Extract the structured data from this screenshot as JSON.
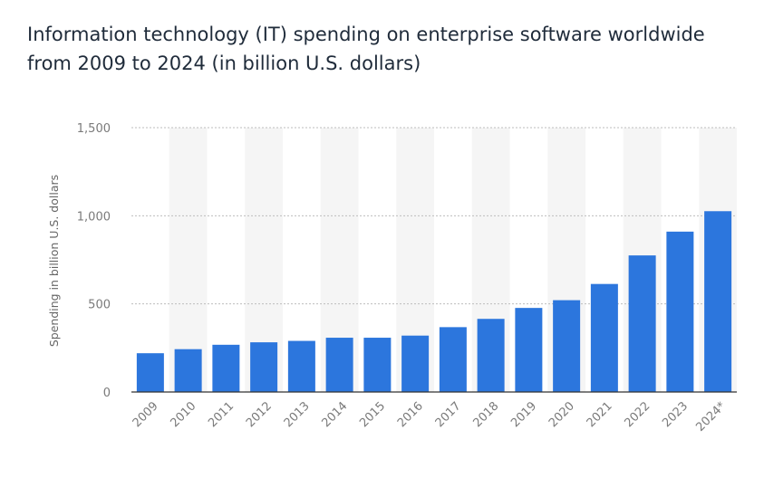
{
  "colors": {
    "bar": "#2c76dd",
    "band": "#f5f5f5",
    "grid": "#bdbdbd",
    "axis": "#333333"
  },
  "chart_data": {
    "type": "bar",
    "title": "Information technology (IT) spending on enterprise software worldwide from 2009 to 2024 (in billion U.S. dollars)",
    "xlabel": "",
    "ylabel": "Spending in billion U.S. dollars",
    "ylim": [
      0,
      1500
    ],
    "yticks": [
      0,
      500,
      1000,
      1500
    ],
    "ytick_labels": [
      "0",
      "500",
      "1,000",
      "1,500"
    ],
    "grid": true,
    "categories": [
      "2009",
      "2010",
      "2011",
      "2012",
      "2013",
      "2014",
      "2015",
      "2016",
      "2017",
      "2018",
      "2019",
      "2020",
      "2021",
      "2022",
      "2023",
      "2024*"
    ],
    "values": [
      220,
      243,
      268,
      282,
      290,
      308,
      308,
      320,
      368,
      415,
      477,
      521,
      613,
      775,
      910,
      1026
    ]
  }
}
